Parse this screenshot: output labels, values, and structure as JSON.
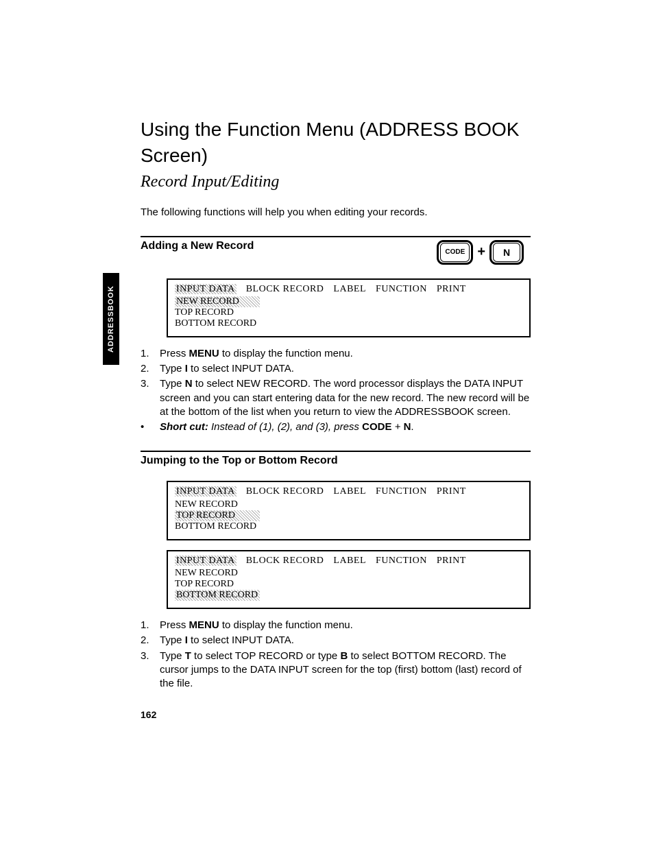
{
  "side_tab": "ADDRESSBOOK",
  "title": "Using the Function Menu (ADDRESS BOOK Screen)",
  "subtitle": "Record Input/Editing",
  "intro": "The following functions will help you when editing your records.",
  "section1": {
    "heading": "Adding a New Record",
    "key1": "CODE",
    "plus": "+",
    "key2": "N",
    "menu": {
      "tabs": [
        "INPUT DATA",
        "BLOCK RECORD",
        "LABEL",
        "FUNCTION",
        "PRINT"
      ],
      "tab_highlight_index": 0,
      "items": [
        "NEW RECORD",
        "TOP RECORD",
        "BOTTOM RECORD"
      ],
      "item_highlight_index": 0
    },
    "steps": [
      {
        "n": "1.",
        "html": "Press <b>MENU</b> to display the function menu."
      },
      {
        "n": "2.",
        "html": "Type <b>I</b> to select INPUT DATA."
      },
      {
        "n": "3.",
        "html": "Type <b>N</b> to select NEW RECORD. The word processor displays the DATA INPUT screen and you can start entering data for the new record. The new record will be at the bottom of the list when you return to view the ADDRESSBOOK screen."
      },
      {
        "n": "•",
        "html": "<b><i>Short cut:</i></b> <i>Instead of (1), (2), and (3), press</i> <b>CODE</b> <i>+</i> <b>N</b>."
      }
    ]
  },
  "section2": {
    "heading": "Jumping to the Top or Bottom Record",
    "menu_a": {
      "tabs": [
        "INPUT DATA",
        "BLOCK RECORD",
        "LABEL",
        "FUNCTION",
        "PRINT"
      ],
      "tab_highlight_index": 0,
      "items": [
        "NEW RECORD",
        "TOP RECORD",
        "BOTTOM RECORD"
      ],
      "item_highlight_index": 1
    },
    "menu_b": {
      "tabs": [
        "INPUT DATA",
        "BLOCK RECORD",
        "LABEL",
        "FUNCTION",
        "PRINT"
      ],
      "tab_highlight_index": 0,
      "items": [
        "NEW RECORD",
        "TOP RECORD",
        "BOTTOM RECORD"
      ],
      "item_highlight_index": 2
    },
    "steps": [
      {
        "n": "1.",
        "html": "Press <b>MENU</b> to display the function menu."
      },
      {
        "n": "2.",
        "html": "Type <b>I</b> to select INPUT DATA."
      },
      {
        "n": "3.",
        "html": "Type <b>T</b> to select TOP RECORD or type <b>B</b> to select BOTTOM RECORD. The cursor jumps to the DATA INPUT screen for the top (first) bottom (last) record of the file."
      }
    ]
  },
  "page_number": "162"
}
